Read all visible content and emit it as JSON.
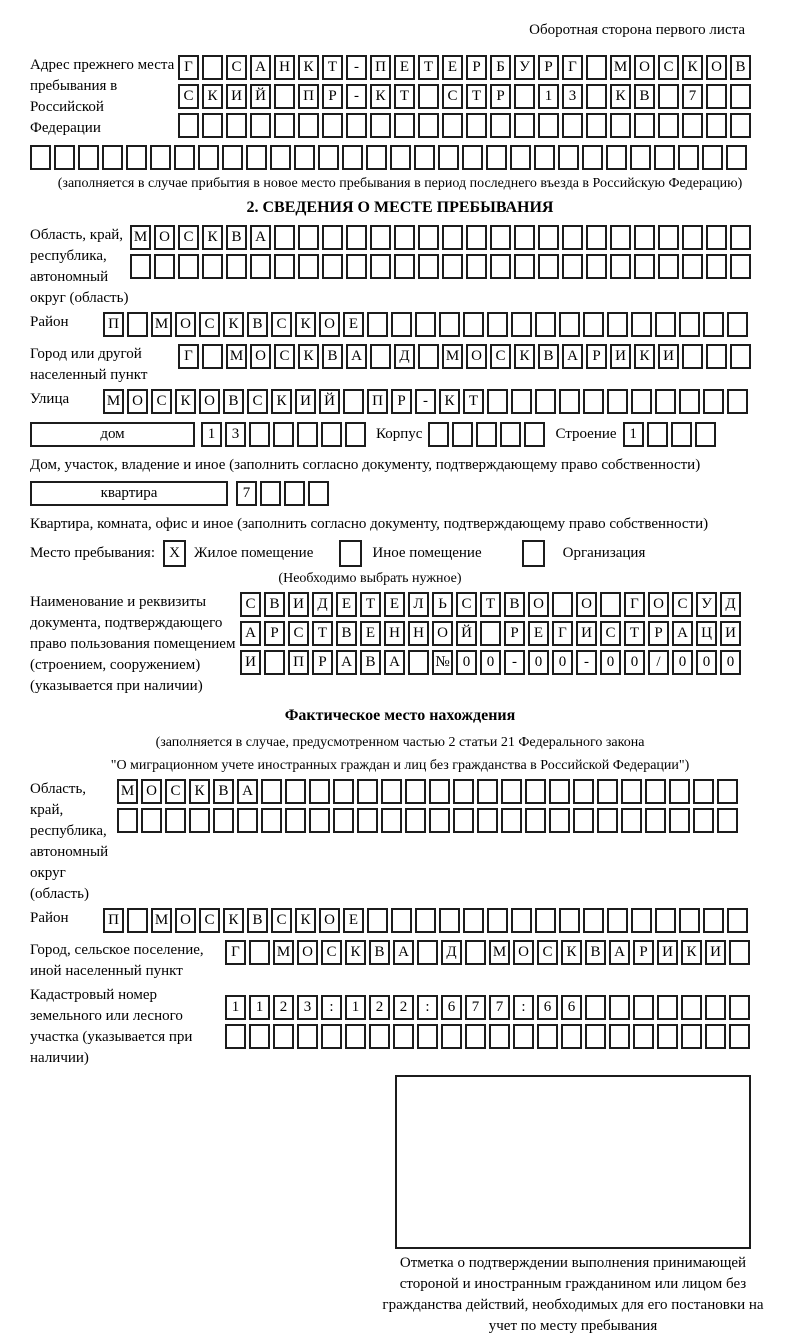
{
  "header": {
    "note": "Оборотная сторона первого листа"
  },
  "prev_address": {
    "label": "Адрес прежнего места пребывания в Российской Федерации",
    "rows": [
      {
        "len": 24,
        "text": "Г САНКТ-ПЕТЕРБУРГ МОСКОВ"
      },
      {
        "len": 24,
        "text": "СКИЙ ПР-КТ СТР 13 КВ 7"
      },
      {
        "len": 24,
        "text": ""
      },
      {
        "len": 30,
        "text": ""
      }
    ],
    "note": "(заполняется в случае прибытия в новое место пребывания в период последнего въезда в Российскую Федерацию)"
  },
  "section2": {
    "title": "2. СВЕДЕНИЯ О МЕСТЕ ПРЕБЫВАНИЯ",
    "oblast": {
      "label": "Область, край, республика, автономный округ (область)",
      "rows": [
        {
          "len": 26,
          "text": "МОСКВА"
        },
        {
          "len": 26,
          "text": ""
        }
      ]
    },
    "raion": {
      "label": "Район",
      "row": {
        "len": 27,
        "text": "П МОСКВСКОЕ"
      }
    },
    "gorod": {
      "label": "Город или другой населенный пункт",
      "row": {
        "len": 24,
        "text": "Г МОСКВА Д МОСКВАРИКИ"
      }
    },
    "ulitsa": {
      "label": "Улица",
      "row": {
        "len": 27,
        "text": "МОСКОВСКИЙ ПР-КТ"
      }
    },
    "dom": {
      "box_label": "дом",
      "cells": {
        "len": 7,
        "text": "13"
      },
      "korpus_label": "Корпус",
      "korpus_cells": {
        "len": 5,
        "text": ""
      },
      "stroenie_label": "Строение",
      "stroenie_cells": {
        "len": 4,
        "text": "1"
      }
    },
    "dom_note": "Дом, участок, владение и иное (заполнить согласно документу, подтверждающему право собственности)",
    "kvartira": {
      "box_label": "квартира",
      "cells": {
        "len": 4,
        "text": "7"
      }
    },
    "kvartira_note": "Квартира, комната, офис и иное (заполнить согласно документу, подтверждающему право собственности)",
    "mesto": {
      "label": "Место пребывания:",
      "options": [
        {
          "label": "Жилое помещение",
          "checked": "X"
        },
        {
          "label": "Иное помещение",
          "checked": ""
        },
        {
          "label": "Организация",
          "checked": ""
        }
      ],
      "note": "(Необходимо выбрать нужное)"
    },
    "document": {
      "label": "Наименование и реквизиты документа, подтверждающего право пользования помещением (строением, сооружением) (указывается при наличии)",
      "rows": [
        {
          "len": 21,
          "text": "СВИДЕТЕЛЬСТВО О ГОСУД"
        },
        {
          "len": 21,
          "text": "АРСТВЕННОЙ РЕГИСТРАЦИ"
        },
        {
          "len": 21,
          "text": "И ПРАВА №00-00-00/000"
        }
      ]
    }
  },
  "fact_location": {
    "title": "Фактическое место нахождения",
    "note_line1": "(заполняется в случае, предусмотренном частью 2 статьи 21 Федерального закона",
    "note_line2": "\"О миграционном учете иностранных граждан и лиц без гражданства в Российской Федерации\")",
    "oblast": {
      "label": "Область, край, республика, автономный округ (область)",
      "rows": [
        {
          "len": 26,
          "text": "МОСКВА"
        },
        {
          "len": 26,
          "text": ""
        }
      ]
    },
    "raion": {
      "label": "Район",
      "row": {
        "len": 27,
        "text": "П МОСКВСКОЕ"
      }
    },
    "gorod": {
      "label": "Город, сельское поселение, иной населенный пункт",
      "row": {
        "len": 22,
        "text": "Г МОСКВА Д МОСКВАРИКИ"
      }
    },
    "kadastr": {
      "label": "Кадастровый номер земельного или лесного участка (указывается при наличии)",
      "rows": [
        {
          "len": 22,
          "text": "1123:122:677:66"
        },
        {
          "len": 22,
          "text": ""
        }
      ]
    },
    "stamp_note": "Отметка о подтверждении выполнения принимающей стороной и иностранным гражданином или лицом без гражданства действий, необходимых для его постановки на учет по месту пребывания"
  }
}
